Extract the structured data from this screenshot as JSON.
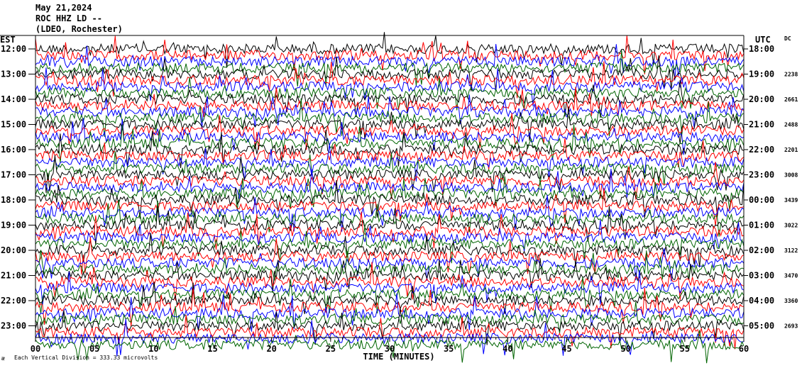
{
  "header": {
    "date": "May 21,2024",
    "station": "ROC HHZ LD --",
    "location": "(LDEO, Rochester)"
  },
  "left_tz": "EST",
  "right_tz": "UTC",
  "dc_header": "DC",
  "footer": {
    "scale_text": "Each Vertical Division =  333.33 microvolts",
    "xlabel": "TIME (MINUTES)"
  },
  "chart_data": {
    "type": "line",
    "title": "",
    "xlabel": "TIME (MINUTES)",
    "xlim": [
      0,
      60
    ],
    "x_ticks": [
      "00",
      "05",
      "10",
      "15",
      "20",
      "25",
      "30",
      "35",
      "40",
      "45",
      "50",
      "55",
      "60"
    ],
    "trace_colors": [
      "#000000",
      "#ff0000",
      "#0000ff",
      "#006400"
    ],
    "rows": [
      {
        "est": "12:00",
        "utc": "18:00",
        "dc": ""
      },
      {
        "est": "13:00",
        "utc": "19:00",
        "dc": "2238"
      },
      {
        "est": "14:00",
        "utc": "20:00",
        "dc": "2661"
      },
      {
        "est": "15:00",
        "utc": "21:00",
        "dc": "2488"
      },
      {
        "est": "16:00",
        "utc": "22:00",
        "dc": "2201"
      },
      {
        "est": "17:00",
        "utc": "23:00",
        "dc": "3008"
      },
      {
        "est": "18:00",
        "utc": "00:00",
        "dc": "3439"
      },
      {
        "est": "19:00",
        "utc": "01:00",
        "dc": "3022"
      },
      {
        "est": "20:00",
        "utc": "02:00",
        "dc": "3122"
      },
      {
        "est": "21:00",
        "utc": "03:00",
        "dc": "3470"
      },
      {
        "est": "22:00",
        "utc": "04:00",
        "dc": "3360"
      },
      {
        "est": "23:00",
        "utc": "05:00",
        "dc": "2693"
      }
    ]
  }
}
